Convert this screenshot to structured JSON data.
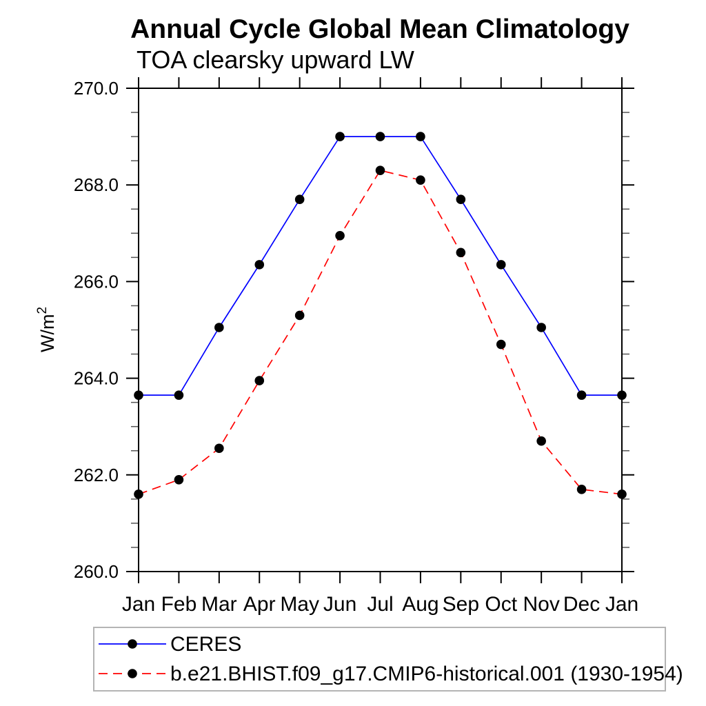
{
  "title": "Annual Cycle Global Mean Climatology",
  "subtitle": "TOA clearsky upward LW",
  "chart_data": {
    "type": "line",
    "title": "Annual Cycle Global Mean Climatology",
    "subtitle": "TOA clearsky upward LW",
    "ylabel": {
      "base": "W/m",
      "superscript": "2"
    },
    "categories": [
      "Jan",
      "Feb",
      "Mar",
      "Apr",
      "May",
      "Jun",
      "Jul",
      "Aug",
      "Sep",
      "Oct",
      "Nov",
      "Dec",
      "Jan"
    ],
    "ylim": [
      260.0,
      270.0
    ],
    "ytick_major": [
      260.0,
      262.0,
      264.0,
      266.0,
      268.0,
      270.0
    ],
    "ytick_labels": [
      "260.0",
      "262.0",
      "264.0",
      "266.0",
      "268.0",
      "270.0"
    ],
    "ytick_minor_step": 0.5,
    "grid": false,
    "legend_position": "bottom-left",
    "marker_color": "#000000",
    "series": [
      {
        "name": "CERES",
        "color": "#0000ff",
        "line_style": "solid",
        "marker": "filled-circle",
        "values": [
          263.65,
          263.65,
          265.05,
          266.35,
          267.7,
          269.0,
          269.0,
          269.0,
          267.7,
          266.35,
          265.05,
          263.65,
          263.65
        ]
      },
      {
        "name": "b.e21.BHIST.f09_g17.CMIP6-historical.001 (1930-1954)",
        "color": "#ff0000",
        "line_style": "dashed",
        "marker": "filled-circle",
        "values": [
          261.6,
          261.9,
          262.55,
          263.95,
          265.3,
          266.95,
          268.3,
          268.1,
          266.6,
          264.7,
          262.7,
          261.7,
          261.6
        ]
      }
    ]
  }
}
